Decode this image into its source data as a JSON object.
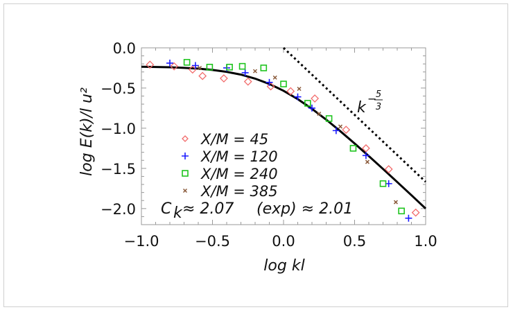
{
  "chart_data": {
    "type": "scatter",
    "title": "",
    "xlabel": "log kl",
    "ylabel": "log E(k)/l u²",
    "xlim": [
      -1.0,
      1.0
    ],
    "ylim": [
      -2.2,
      0.0
    ],
    "xticks": [
      "−1.0",
      "−0.5",
      "0.0",
      "0.5",
      "1.0"
    ],
    "xtick_values": [
      -1.0,
      -0.5,
      0.0,
      0.5,
      1.0
    ],
    "yticks": [
      "0.0",
      "−0.5",
      "−1.0",
      "−1.5",
      "−2.0"
    ],
    "ytick_values": [
      0.0,
      -0.5,
      -1.0,
      -1.5,
      -2.0
    ],
    "legend_position": "lower-left",
    "series": [
      {
        "name": "X/M = 45",
        "marker": "diamond",
        "color": "#f26b6b",
        "points": [
          [
            -0.94,
            -0.21
          ],
          [
            -0.77,
            -0.23
          ],
          [
            -0.64,
            -0.27
          ],
          [
            -0.57,
            -0.35
          ],
          [
            -0.42,
            -0.38
          ],
          [
            -0.25,
            -0.42
          ],
          [
            -0.09,
            -0.48
          ],
          [
            0.05,
            -0.54
          ],
          [
            0.22,
            -0.63
          ],
          [
            0.44,
            -1.02
          ],
          [
            0.58,
            -1.25
          ],
          [
            0.74,
            -1.51
          ],
          [
            0.93,
            -2.05
          ]
        ]
      },
      {
        "name": "X/M = 120",
        "marker": "plus",
        "color": "#1a1aff",
        "points": [
          [
            -0.8,
            -0.19
          ],
          [
            -0.62,
            -0.22
          ],
          [
            -0.4,
            -0.25
          ],
          [
            -0.27,
            -0.31
          ],
          [
            -0.1,
            -0.43
          ],
          [
            0.1,
            -0.61
          ],
          [
            0.2,
            -0.75
          ],
          [
            0.37,
            -1.03
          ],
          [
            0.58,
            -1.34
          ],
          [
            0.74,
            -1.69
          ],
          [
            0.88,
            -2.12
          ]
        ]
      },
      {
        "name": "X/M = 240",
        "marker": "square",
        "color": "#1ec41e",
        "points": [
          [
            -0.68,
            -0.18
          ],
          [
            -0.52,
            -0.24
          ],
          [
            -0.38,
            -0.24
          ],
          [
            -0.29,
            -0.23
          ],
          [
            -0.14,
            -0.25
          ],
          [
            0.0,
            -0.45
          ],
          [
            0.17,
            -0.69
          ],
          [
            0.32,
            -0.88
          ],
          [
            0.49,
            -1.25
          ],
          [
            0.7,
            -1.69
          ],
          [
            0.83,
            -2.03
          ]
        ]
      },
      {
        "name": "X/M = 385",
        "marker": "cross",
        "color": "#8a5a3a",
        "points": [
          [
            -0.59,
            -0.25
          ],
          [
            -0.2,
            -0.29
          ],
          [
            -0.06,
            -0.37
          ],
          [
            0.11,
            -0.51
          ],
          [
            0.25,
            -0.82
          ],
          [
            0.4,
            -0.98
          ],
          [
            0.59,
            -1.42
          ],
          [
            0.79,
            -1.92
          ]
        ]
      }
    ],
    "model_curve": {
      "color": "#000000",
      "points": [
        [
          -1.0,
          -0.235
        ],
        [
          -0.9,
          -0.238
        ],
        [
          -0.8,
          -0.242
        ],
        [
          -0.7,
          -0.249
        ],
        [
          -0.6,
          -0.259
        ],
        [
          -0.5,
          -0.275
        ],
        [
          -0.4,
          -0.299
        ],
        [
          -0.3,
          -0.333
        ],
        [
          -0.2,
          -0.383
        ],
        [
          -0.1,
          -0.449
        ],
        [
          0.0,
          -0.534
        ],
        [
          0.1,
          -0.638
        ],
        [
          0.2,
          -0.759
        ],
        [
          0.3,
          -0.893
        ],
        [
          0.4,
          -1.038
        ],
        [
          0.5,
          -1.19
        ],
        [
          0.6,
          -1.347
        ],
        [
          0.7,
          -1.507
        ],
        [
          0.8,
          -1.67
        ],
        [
          0.9,
          -1.834
        ],
        [
          1.0,
          -2.0
        ]
      ]
    },
    "reference_line": {
      "label_base": "k",
      "label_exp": "−5/3",
      "exp_num": "5",
      "exp_den": "3",
      "points": [
        [
          0.0,
          0.0
        ],
        [
          1.0,
          -1.667
        ]
      ]
    },
    "annotations": {
      "ck": "C",
      "ck_sub": "k",
      "ck_value": "≈ 2.07",
      "exp": "(exp) ≈ 2.01"
    }
  }
}
